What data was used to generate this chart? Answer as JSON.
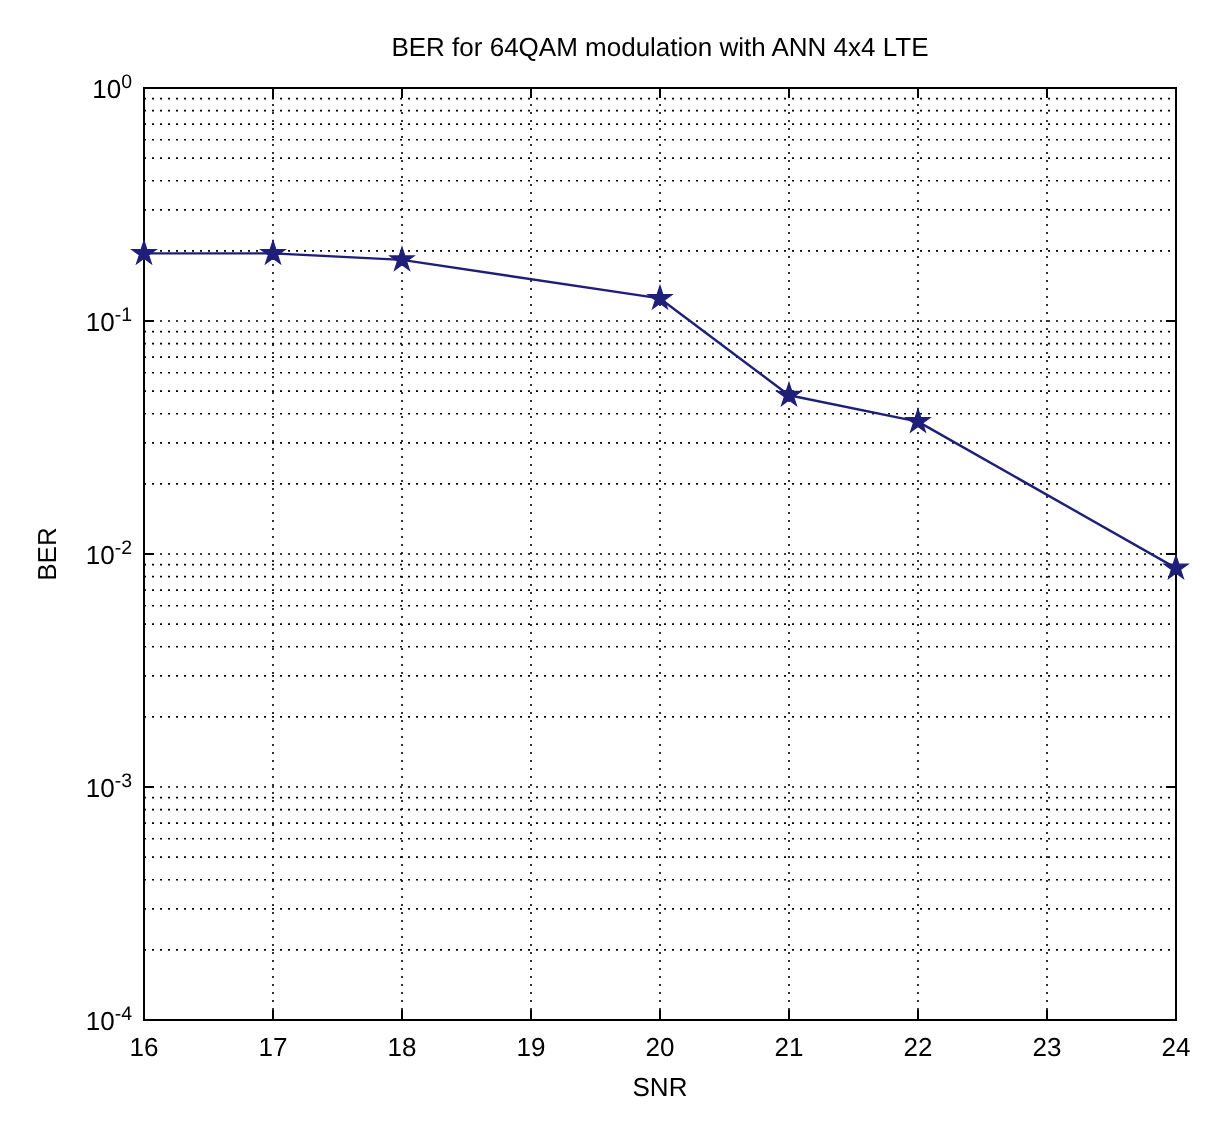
{
  "chart_data": {
    "type": "line",
    "title": "BER for 64QAM modulation with ANN 4x4 LTE",
    "xlabel": "SNR",
    "ylabel": "BER",
    "x": [
      16,
      17,
      18,
      20,
      21,
      22,
      24
    ],
    "series": [
      {
        "color": "#1f1f7a",
        "values": [
          0.195,
          0.195,
          0.183,
          0.125,
          0.048,
          0.037,
          0.0087
        ]
      }
    ],
    "log": "y",
    "grid": true,
    "marker": "star",
    "line_style": "solid",
    "xlim": [
      16,
      24
    ],
    "xticks": [
      16,
      17,
      18,
      19,
      20,
      21,
      22,
      23,
      24
    ],
    "ylim": [
      0.0001,
      1
    ],
    "yticks": [
      {
        "value": 0.0001,
        "label": "10$^{-4}$"
      },
      {
        "value": 0.001,
        "label": "10$^{-3}$"
      },
      {
        "value": 0.01,
        "label": "10$^{-2}$"
      },
      {
        "value": 0.1,
        "label": "10$^{-1}$"
      },
      {
        "value": 1,
        "label": "10$^{0}$"
      }
    ]
  }
}
